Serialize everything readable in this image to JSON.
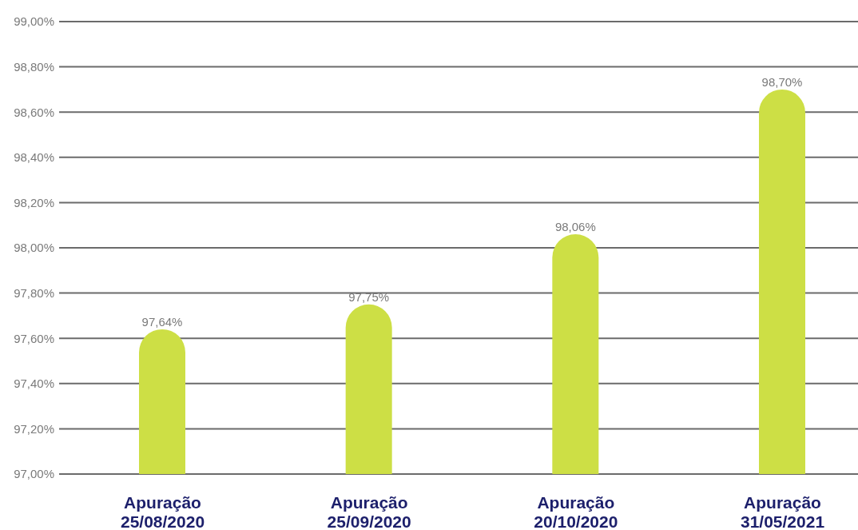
{
  "chart_data": {
    "type": "bar",
    "categories": [
      "Apuração\n25/08/2020",
      "Apuração\n25/09/2020",
      "Apuração\n20/10/2020",
      "Apuração\n31/05/2021"
    ],
    "values": [
      97.64,
      97.75,
      98.06,
      98.7
    ],
    "color": "#cddf45",
    "value_labels": [
      "97,64%",
      "97,75%",
      "98,06%",
      "98,70%"
    ],
    "ylim": [
      97,
      99
    ],
    "yticks": [
      {
        "value": 97,
        "label": "97,00%"
      },
      {
        "value": 97.2,
        "label": "97,20%"
      },
      {
        "value": 97.4,
        "label": "97,40%"
      },
      {
        "value": 97.6,
        "label": "97,60%"
      },
      {
        "value": 97.8,
        "label": "97,80%"
      },
      {
        "value": 98,
        "label": "98,00%"
      },
      {
        "value": 98.2,
        "label": "98,20%"
      },
      {
        "value": 98.4,
        "label": "98,40%"
      },
      {
        "value": 98.6,
        "label": "98,60%"
      },
      {
        "value": 98.8,
        "label": "98,80%"
      },
      {
        "value": 99,
        "label": "99,00%"
      }
    ],
    "grid": "y"
  }
}
